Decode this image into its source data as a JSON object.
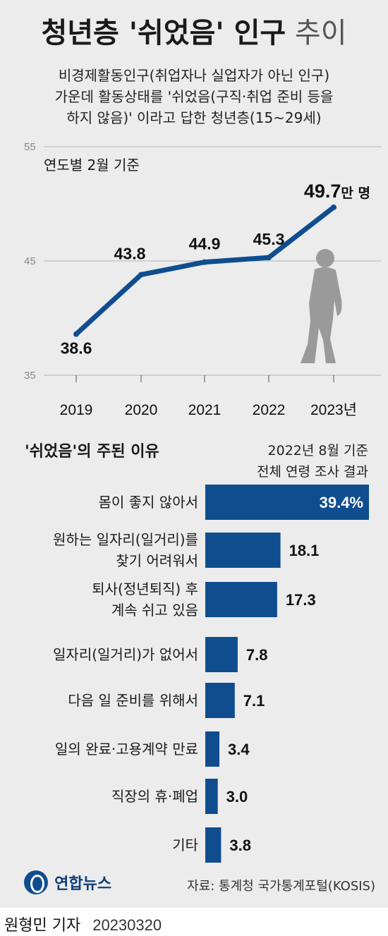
{
  "header": {
    "title_bold": "청년층 '쉬었음' 인구",
    "title_light": "추이",
    "subtitle_lines": [
      "비경제활동인구(취업자나 실업자가 아닌 인구)",
      "가운데 활동상태를 '쉬었음(구직·취업 준비 등을",
      "하지 않음)' 이라고 답한 청년층(15~29세)"
    ]
  },
  "line_section": {
    "note": "연도별 2월 기준",
    "last_label_unit": "만 명"
  },
  "bar_section": {
    "title": "'쉬었음'의 주된 이유",
    "note_lines": [
      "2022년 8월 기준",
      "전체 연령 조사 결과"
    ]
  },
  "footer": {
    "logo_text": "연합뉴스",
    "source": "자료: 통계청 국가통계포털(KOSIS)",
    "reporter": "원형민 기자",
    "date": "20230320"
  },
  "chart_data": [
    {
      "type": "line",
      "x": [
        "2019",
        "2020",
        "2021",
        "2022",
        "2023년"
      ],
      "values": [
        38.6,
        43.8,
        44.9,
        45.3,
        49.7
      ],
      "value_labels": [
        "38.6",
        "43.8",
        "44.9",
        "45.3",
        "49.7"
      ],
      "ylim": [
        35,
        55
      ],
      "yticks": [
        "35",
        "45",
        "55"
      ],
      "color": "#0f4d8f",
      "grid": true
    },
    {
      "type": "bar",
      "orientation": "horizontal",
      "categories": [
        [
          "몸이 좋지 않아서"
        ],
        [
          "원하는 일자리(일거리)를",
          "찾기 어려워서"
        ],
        [
          "퇴사(정년퇴직) 후",
          "계속 쉬고 있음"
        ],
        [
          "일자리(일거리)가 없어서"
        ],
        [
          "다음 일 준비를 위해서"
        ],
        [
          "일의 완료·고용계약 만료"
        ],
        [
          "직장의 휴·폐업"
        ],
        [
          "기타"
        ]
      ],
      "values": [
        39.4,
        18.1,
        17.3,
        7.8,
        7.1,
        3.4,
        3.0,
        3.8
      ],
      "value_labels": [
        "39.4%",
        "18.1",
        "17.3",
        "7.8",
        "7.1",
        "3.4",
        "3.0",
        "3.8"
      ],
      "color": "#0f4d8f"
    }
  ]
}
